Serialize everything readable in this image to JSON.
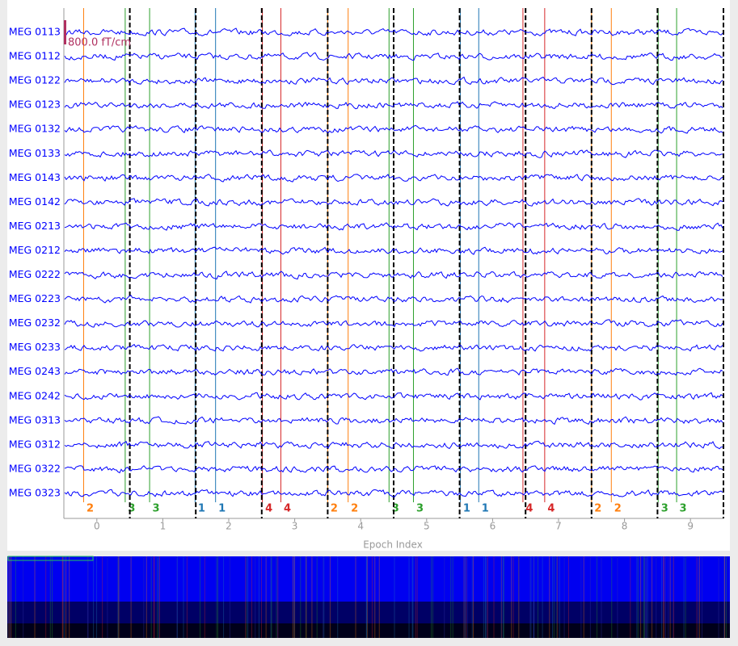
{
  "chart_data": {
    "type": "epochs",
    "channels": [
      "MEG 0113",
      "MEG 0112",
      "MEG 0122",
      "MEG 0123",
      "MEG 0132",
      "MEG 0133",
      "MEG 0143",
      "MEG 0142",
      "MEG 0213",
      "MEG 0212",
      "MEG 0222",
      "MEG 0223",
      "MEG 0232",
      "MEG 0233",
      "MEG 0243",
      "MEG 0242",
      "MEG 0313",
      "MEG 0312",
      "MEG 0322",
      "MEG 0323"
    ],
    "channel_color": "#0000ff",
    "scale_label": "800.0 fT/cm",
    "x_label": "Epoch Index",
    "xlim": [
      -0.5,
      9.5
    ],
    "xticks": [
      0,
      1,
      2,
      3,
      4,
      5,
      6,
      7,
      8,
      9
    ],
    "event_colors": {
      "1": "#1f77b4",
      "2": "#ff7f0e",
      "3": "#2ca02c",
      "4": "#d62728"
    },
    "events": [
      {
        "x": -0.2,
        "label": "2"
      },
      {
        "x": 0.43,
        "label": "3"
      },
      {
        "x": 0.8,
        "label": "3"
      },
      {
        "x": 1.49,
        "label": "1"
      },
      {
        "x": 1.8,
        "label": "1"
      },
      {
        "x": 2.51,
        "label": "4"
      },
      {
        "x": 2.79,
        "label": "4"
      },
      {
        "x": 3.5,
        "label": "2"
      },
      {
        "x": 3.81,
        "label": "2"
      },
      {
        "x": 4.43,
        "label": "3"
      },
      {
        "x": 4.8,
        "label": "3"
      },
      {
        "x": 5.51,
        "label": "1"
      },
      {
        "x": 5.79,
        "label": "1"
      },
      {
        "x": 6.46,
        "label": "4"
      },
      {
        "x": 6.79,
        "label": "4"
      },
      {
        "x": 7.5,
        "label": "2"
      },
      {
        "x": 7.8,
        "label": "2"
      },
      {
        "x": 8.51,
        "label": "3"
      },
      {
        "x": 8.79,
        "label": "3"
      }
    ]
  }
}
